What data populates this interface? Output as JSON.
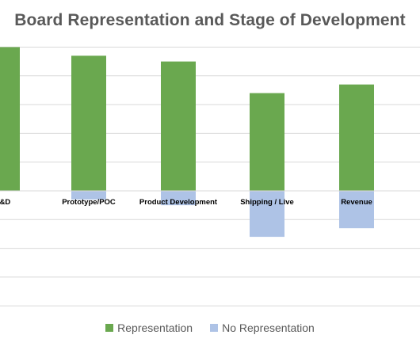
{
  "chart_data": {
    "type": "bar",
    "title": "Board Representation and Stage of Development",
    "xlabel": "",
    "ylabel": "",
    "categories": [
      "R&D",
      "Prototype/POC",
      "Product Development",
      "Shipping / Live",
      "Revenue"
    ],
    "series": [
      {
        "name": "Representation",
        "color": "#6aa84f",
        "values": [
          50,
          47,
          45,
          34,
          37
        ]
      },
      {
        "name": "No Representation",
        "color": "#aec3e6",
        "values": [
          0,
          -3,
          -5,
          -16,
          -13
        ]
      }
    ],
    "stacked": true,
    "ylim": [
      -40,
      50
    ],
    "grid": true,
    "legend": "bottom"
  }
}
